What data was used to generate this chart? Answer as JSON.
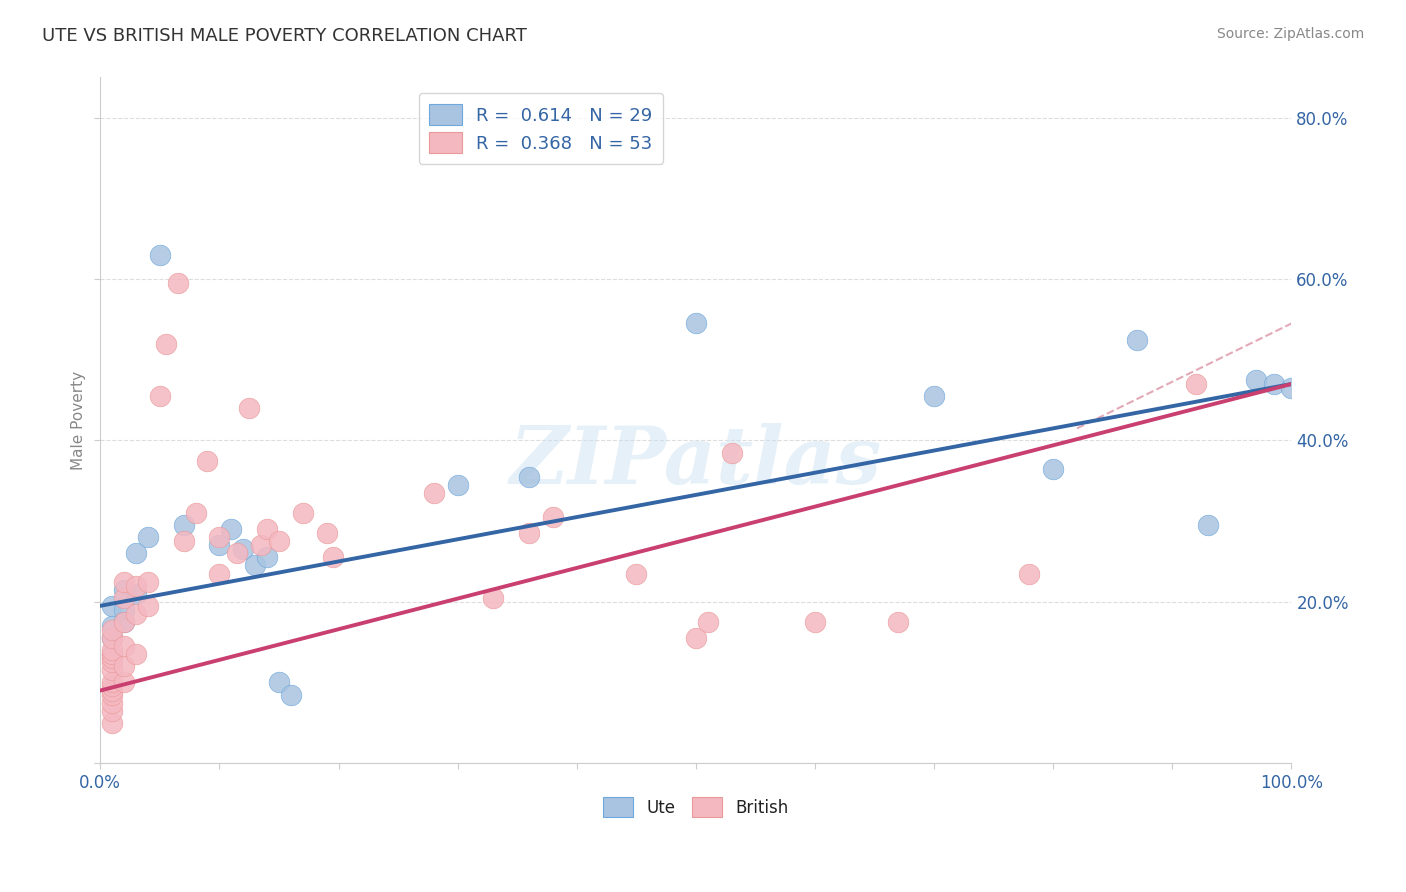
{
  "title": "UTE VS BRITISH MALE POVERTY CORRELATION CHART",
  "source": "Source: ZipAtlas.com",
  "ylabel": "Male Poverty",
  "xlim": [
    0.0,
    1.0
  ],
  "ylim": [
    0.0,
    0.85
  ],
  "ute_color": "#a8c4e0",
  "ute_edge_color": "#6fa8dc",
  "british_color": "#f4b8c1",
  "british_edge_color": "#ea9999",
  "ute_line_color": "#3465a4",
  "british_line_color": "#c94070",
  "dash_color": "#e0a0b0",
  "ute_R": 0.614,
  "ute_N": 29,
  "british_R": 0.368,
  "british_N": 53,
  "watermark": "ZIPatlas",
  "ute_line_y0": 0.195,
  "ute_line_y1": 0.47,
  "british_line_y0": 0.09,
  "british_line_y1": 0.47,
  "dash_line_x0": 0.82,
  "dash_line_y0": 0.415,
  "dash_line_x1": 1.0,
  "dash_line_y1": 0.545,
  "ute_points": [
    [
      0.01,
      0.195
    ],
    [
      0.01,
      0.17
    ],
    [
      0.01,
      0.155
    ],
    [
      0.01,
      0.135
    ],
    [
      0.02,
      0.215
    ],
    [
      0.02,
      0.19
    ],
    [
      0.02,
      0.175
    ],
    [
      0.03,
      0.26
    ],
    [
      0.03,
      0.21
    ],
    [
      0.04,
      0.28
    ],
    [
      0.05,
      0.63
    ],
    [
      0.07,
      0.295
    ],
    [
      0.1,
      0.27
    ],
    [
      0.11,
      0.29
    ],
    [
      0.12,
      0.265
    ],
    [
      0.13,
      0.245
    ],
    [
      0.14,
      0.255
    ],
    [
      0.15,
      0.1
    ],
    [
      0.16,
      0.085
    ],
    [
      0.3,
      0.345
    ],
    [
      0.36,
      0.355
    ],
    [
      0.5,
      0.545
    ],
    [
      0.7,
      0.455
    ],
    [
      0.8,
      0.365
    ],
    [
      0.87,
      0.525
    ],
    [
      0.93,
      0.295
    ],
    [
      0.97,
      0.475
    ],
    [
      0.985,
      0.47
    ],
    [
      1.0,
      0.465
    ]
  ],
  "british_points": [
    [
      0.01,
      0.05
    ],
    [
      0.01,
      0.065
    ],
    [
      0.01,
      0.075
    ],
    [
      0.01,
      0.085
    ],
    [
      0.01,
      0.09
    ],
    [
      0.01,
      0.095
    ],
    [
      0.01,
      0.1
    ],
    [
      0.01,
      0.115
    ],
    [
      0.01,
      0.125
    ],
    [
      0.01,
      0.13
    ],
    [
      0.01,
      0.135
    ],
    [
      0.01,
      0.14
    ],
    [
      0.01,
      0.155
    ],
    [
      0.01,
      0.165
    ],
    [
      0.02,
      0.1
    ],
    [
      0.02,
      0.12
    ],
    [
      0.02,
      0.145
    ],
    [
      0.02,
      0.175
    ],
    [
      0.02,
      0.205
    ],
    [
      0.02,
      0.225
    ],
    [
      0.03,
      0.135
    ],
    [
      0.03,
      0.185
    ],
    [
      0.03,
      0.22
    ],
    [
      0.04,
      0.195
    ],
    [
      0.04,
      0.225
    ],
    [
      0.05,
      0.455
    ],
    [
      0.055,
      0.52
    ],
    [
      0.065,
      0.595
    ],
    [
      0.07,
      0.275
    ],
    [
      0.08,
      0.31
    ],
    [
      0.09,
      0.375
    ],
    [
      0.1,
      0.235
    ],
    [
      0.1,
      0.28
    ],
    [
      0.115,
      0.26
    ],
    [
      0.125,
      0.44
    ],
    [
      0.135,
      0.27
    ],
    [
      0.14,
      0.29
    ],
    [
      0.15,
      0.275
    ],
    [
      0.17,
      0.31
    ],
    [
      0.19,
      0.285
    ],
    [
      0.195,
      0.255
    ],
    [
      0.28,
      0.335
    ],
    [
      0.33,
      0.205
    ],
    [
      0.36,
      0.285
    ],
    [
      0.38,
      0.305
    ],
    [
      0.45,
      0.235
    ],
    [
      0.5,
      0.155
    ],
    [
      0.51,
      0.175
    ],
    [
      0.53,
      0.385
    ],
    [
      0.6,
      0.175
    ],
    [
      0.67,
      0.175
    ],
    [
      0.78,
      0.235
    ],
    [
      0.92,
      0.47
    ]
  ]
}
